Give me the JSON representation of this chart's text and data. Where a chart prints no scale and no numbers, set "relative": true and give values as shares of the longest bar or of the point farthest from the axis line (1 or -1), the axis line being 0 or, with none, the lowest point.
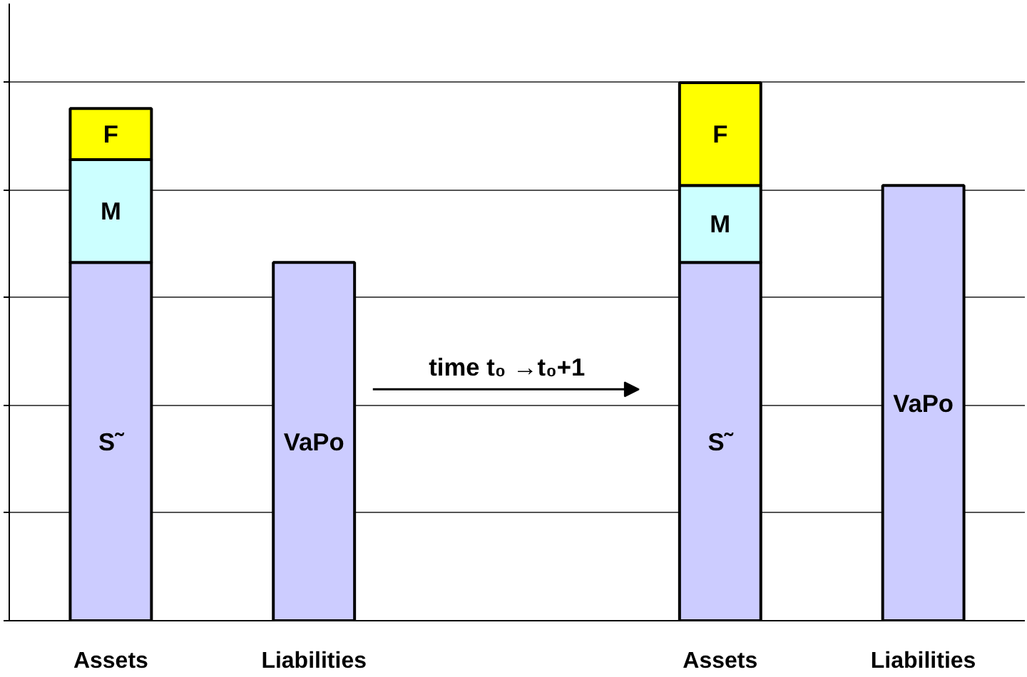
{
  "chart_data": {
    "type": "bar",
    "stacked": true,
    "relative": true,
    "grid": "y",
    "categories": [
      "Assets",
      "Liabilities",
      null,
      "Assets",
      "Liabilities"
    ],
    "series": [
      {
        "name": "S˜",
        "color": "#ccccff",
        "values": [
          0.666,
          null,
          null,
          0.666,
          null
        ]
      },
      {
        "name": "VaPo",
        "color": "#ccccff",
        "values": [
          null,
          0.666,
          null,
          null,
          0.809
        ]
      },
      {
        "name": "M",
        "color": "#ccffff",
        "values": [
          0.191,
          null,
          null,
          0.143,
          null
        ]
      },
      {
        "name": "F",
        "color": "#ffff00",
        "values": [
          0.095,
          null,
          null,
          0.191,
          null
        ]
      }
    ],
    "annotations": [
      "time t₀ →t₀+1"
    ]
  }
}
